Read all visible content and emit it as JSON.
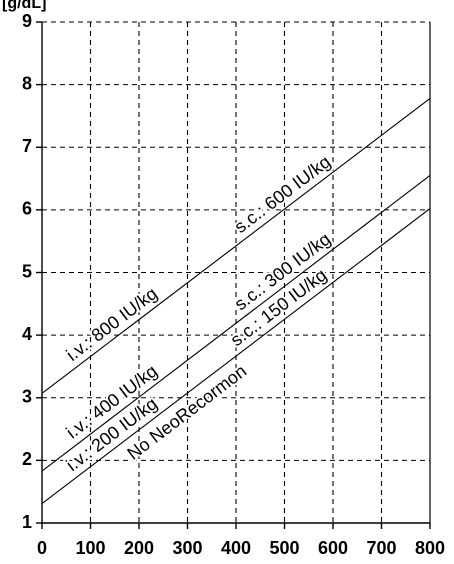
{
  "y_unit_label": "[g/dL]",
  "chart_data": {
    "type": "line",
    "xlabel": "",
    "ylabel": "",
    "xlim": [
      0,
      800
    ],
    "ylim": [
      1,
      9
    ],
    "x_ticks": [
      0,
      100,
      200,
      300,
      400,
      500,
      600,
      700,
      800
    ],
    "y_ticks": [
      1,
      2,
      3,
      4,
      5,
      6,
      7,
      8,
      9
    ],
    "x_tick_labels": [
      "0",
      "100",
      "200",
      "300",
      "400",
      "500",
      "600",
      "700",
      "800"
    ],
    "y_tick_labels": [
      "1",
      "2",
      "3",
      "4",
      "5",
      "6",
      "7",
      "8",
      "9"
    ],
    "grid": true,
    "series": [
      {
        "x": [
          0,
          800
        ],
        "y": [
          3.07,
          7.78
        ],
        "labels": [
          "i.v.: 800 IU/kg",
          "s.c.: 600 IU/kg"
        ]
      },
      {
        "x": [
          0,
          800
        ],
        "y": [
          1.83,
          6.55
        ],
        "labels": [
          "i.v.: 400 IU/kg",
          "s.c.: 300 IU/kg"
        ]
      },
      {
        "x": [
          0,
          800
        ],
        "y": [
          1.31,
          6.02
        ],
        "labels": [
          "i.v.: 200 IU/kg",
          "s.c.: 150 IU/kg",
          "No NeoRecormon"
        ]
      }
    ]
  }
}
